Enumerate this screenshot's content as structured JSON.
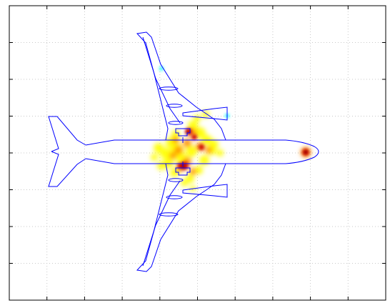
{
  "figure": {
    "grid": true,
    "tick_count_x": 10,
    "tick_count_y": 8,
    "colors": {
      "frame": "#000000",
      "grid": "#c8c8c8",
      "outline": "#0000ff",
      "heat_low": "#ffff00",
      "heat_mid": "#ff8c00",
      "heat_high": "#cc0000",
      "heat_peak": "#800000",
      "cold_spot": "#00ffff"
    },
    "icons": {
      "aircraft": "aircraft-top-view-outline"
    }
  }
}
